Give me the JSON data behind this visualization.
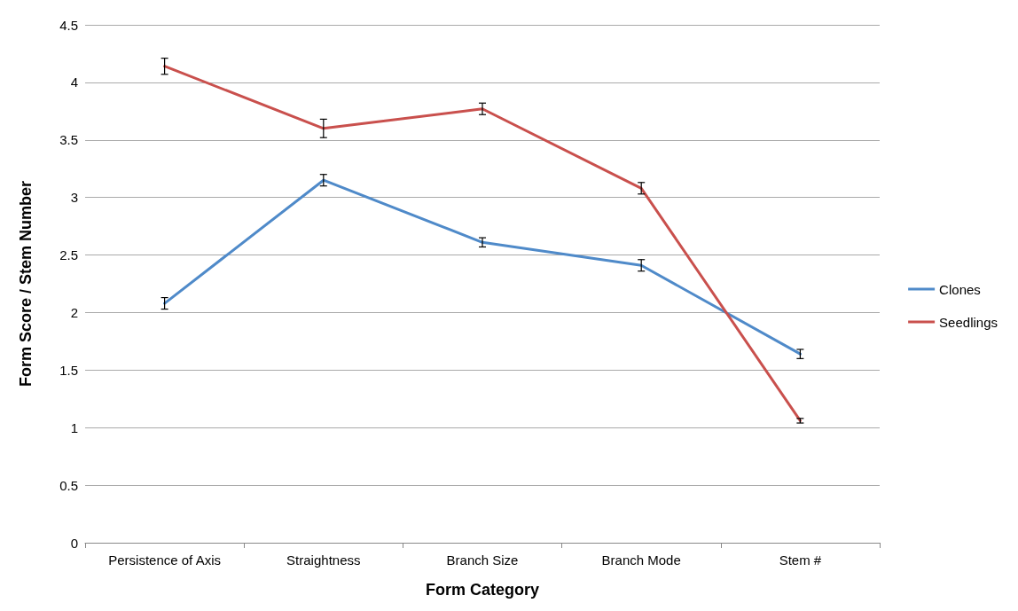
{
  "chart_data": {
    "type": "line",
    "xlabel": "Form Category",
    "ylabel": "Form Score / Stem Number",
    "categories": [
      "Persistence of Axis",
      "Straightness",
      "Branch Size",
      "Branch Mode",
      "Stem #"
    ],
    "series": [
      {
        "name": "Clones",
        "color": "#4f8ac9",
        "values": [
          2.08,
          3.15,
          2.61,
          2.41,
          1.64
        ],
        "errors": [
          0.05,
          0.05,
          0.04,
          0.05,
          0.04
        ]
      },
      {
        "name": "Seedlings",
        "color": "#c9504d",
        "values": [
          4.14,
          3.6,
          3.77,
          3.08,
          1.06
        ],
        "errors": [
          0.07,
          0.08,
          0.05,
          0.05,
          0.02
        ]
      }
    ],
    "ylim": [
      0,
      4.5
    ],
    "yticks": [
      0,
      0.5,
      1,
      1.5,
      2,
      2.5,
      3,
      3.5,
      4,
      4.5
    ],
    "grid": "y",
    "legend": "right",
    "marker": "none",
    "line_style": "solid"
  }
}
